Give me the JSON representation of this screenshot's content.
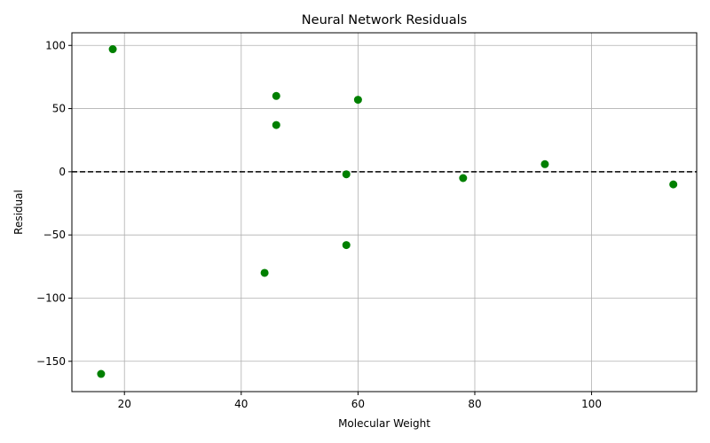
{
  "chart_data": {
    "type": "scatter",
    "title": "Neural Network Residuals",
    "xlabel": "Molecular Weight",
    "ylabel": "Residual",
    "xlim": [
      11,
      118
    ],
    "ylim": [
      -174,
      110
    ],
    "xticks": [
      20,
      40,
      60,
      80,
      100
    ],
    "yticks": [
      100,
      50,
      0,
      -50,
      -100,
      -150
    ],
    "xtick_labels": [
      "20",
      "40",
      "60",
      "80",
      "100"
    ],
    "ytick_labels": [
      "100",
      "50",
      "0",
      "−50",
      "−100",
      "−150"
    ],
    "grid": true,
    "point_color": "#008000",
    "reference_line": {
      "y": 0,
      "style": "dashed",
      "color": "#000000"
    },
    "points": [
      {
        "x": 16,
        "y": -160
      },
      {
        "x": 18,
        "y": 97
      },
      {
        "x": 44,
        "y": -80
      },
      {
        "x": 46,
        "y": 60
      },
      {
        "x": 46,
        "y": 37
      },
      {
        "x": 58,
        "y": -2
      },
      {
        "x": 58,
        "y": -58
      },
      {
        "x": 60,
        "y": 57
      },
      {
        "x": 78,
        "y": -5
      },
      {
        "x": 92,
        "y": 6
      },
      {
        "x": 114,
        "y": -10
      }
    ]
  }
}
